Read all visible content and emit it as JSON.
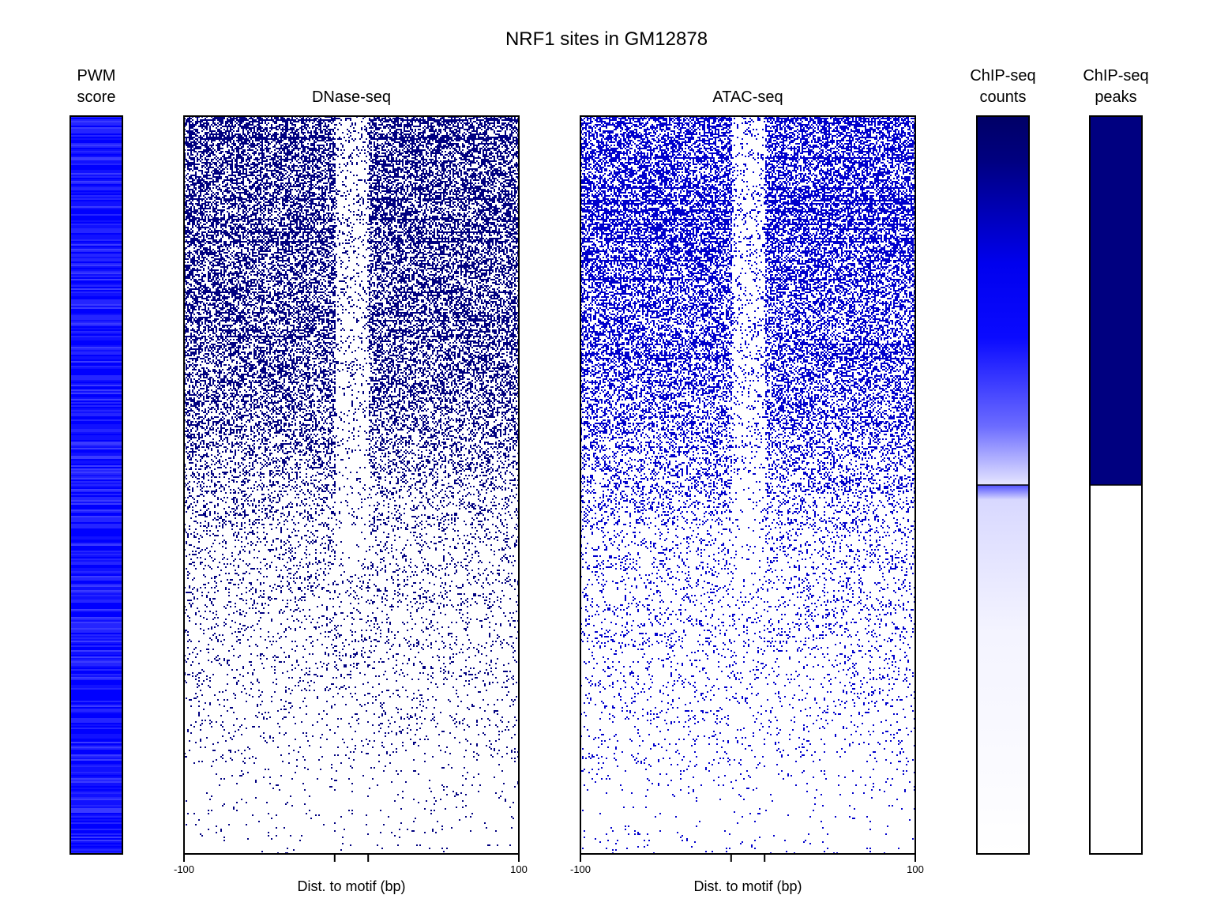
{
  "chart_data": {
    "type": "heatmap",
    "title": "NRF1 sites in GM12878",
    "panels": [
      {
        "id": "pwm",
        "title_lines": [
          "PWM",
          "score"
        ],
        "kind": "score-stripes",
        "color": "#0000ff",
        "description_of_values": "PWM score per motif site (rows), shown as blue intensity"
      },
      {
        "id": "dnase",
        "title_lines": [
          "DNase-seq"
        ],
        "kind": "cut-site-heatmap",
        "color": "#000080",
        "xlabel": "Dist. to motif (bp)",
        "xlim": [
          -100,
          100
        ],
        "xticks": [
          -100,
          100
        ],
        "motif_bounds_bp": [
          -10,
          10
        ],
        "occupancy_boundary_fraction": 0.5
      },
      {
        "id": "atac",
        "title_lines": [
          "ATAC-seq"
        ],
        "kind": "cut-site-heatmap",
        "color": "#0000cd",
        "xlabel": "Dist. to motif (bp)",
        "xlim": [
          -100,
          100
        ],
        "xticks": [
          -100,
          100
        ],
        "motif_bounds_bp": [
          -10,
          10
        ],
        "occupancy_boundary_fraction": 0.5
      },
      {
        "id": "chip_counts",
        "title_lines": [
          "ChIP-seq",
          "counts"
        ],
        "kind": "gradient",
        "stops": [
          {
            "frac": 0.0,
            "color": "#000066"
          },
          {
            "frac": 0.06,
            "color": "#000080"
          },
          {
            "frac": 0.2,
            "color": "#0000ee"
          },
          {
            "frac": 0.3,
            "color": "#0a0aff"
          },
          {
            "frac": 0.42,
            "color": "#6b6bff"
          },
          {
            "frac": 0.5,
            "color": "#e6e6ff"
          },
          {
            "frac": 0.5,
            "color": "#5050ff"
          },
          {
            "frac": 0.52,
            "color": "#d8d8ff"
          },
          {
            "frac": 0.7,
            "color": "#f4f4ff"
          },
          {
            "frac": 0.9,
            "color": "#fbfbff"
          },
          {
            "frac": 1.0,
            "color": "#ffffff"
          }
        ],
        "divider_fraction": 0.5
      },
      {
        "id": "chip_peaks",
        "title_lines": [
          "ChIP-seq",
          "peaks"
        ],
        "kind": "binary",
        "bound_color": "#000080",
        "unbound_color": "#ffffff",
        "bound_fraction": 0.5
      }
    ]
  }
}
